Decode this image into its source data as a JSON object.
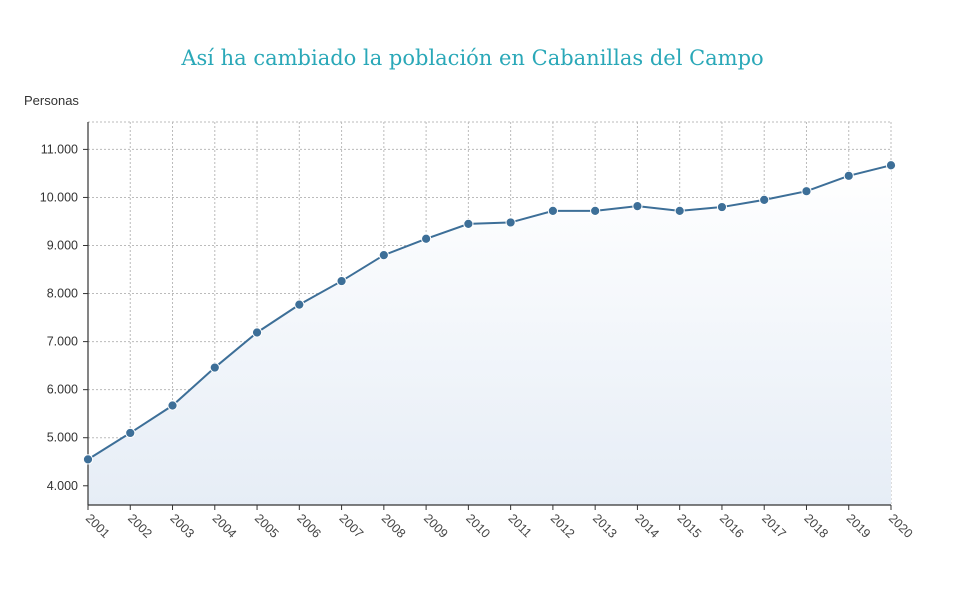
{
  "chart_data": {
    "type": "area",
    "title": "Así ha cambiado la población en Cabanillas del Campo",
    "ylabel": "Personas",
    "xlabel": "",
    "x": [
      "2001",
      "2002",
      "2003",
      "2004",
      "2005",
      "2006",
      "2007",
      "2008",
      "2009",
      "2010",
      "2011",
      "2012",
      "2013",
      "2014",
      "2015",
      "2016",
      "2017",
      "2018",
      "2019",
      "2020"
    ],
    "series": [
      {
        "values": [
          4550,
          5100,
          5670,
          6460,
          7190,
          7770,
          8260,
          8800,
          9140,
          9450,
          9480,
          9720,
          9720,
          9820,
          9720,
          9800,
          9950,
          10130,
          10450,
          10670
        ]
      }
    ],
    "yticks": [
      4000,
      5000,
      6000,
      7000,
      8000,
      9000,
      10000,
      11000
    ],
    "ytick_labels": [
      "4.000",
      "5.000",
      "6.000",
      "7.000",
      "8.000",
      "9.000",
      "10.000",
      "11.000"
    ],
    "ylim": [
      3600,
      11570
    ],
    "grid": true,
    "colors": {
      "line": "#3d6f98",
      "marker": "#3d6f98",
      "title": "#2aa8b8",
      "grid": "#bbbbbb"
    }
  }
}
